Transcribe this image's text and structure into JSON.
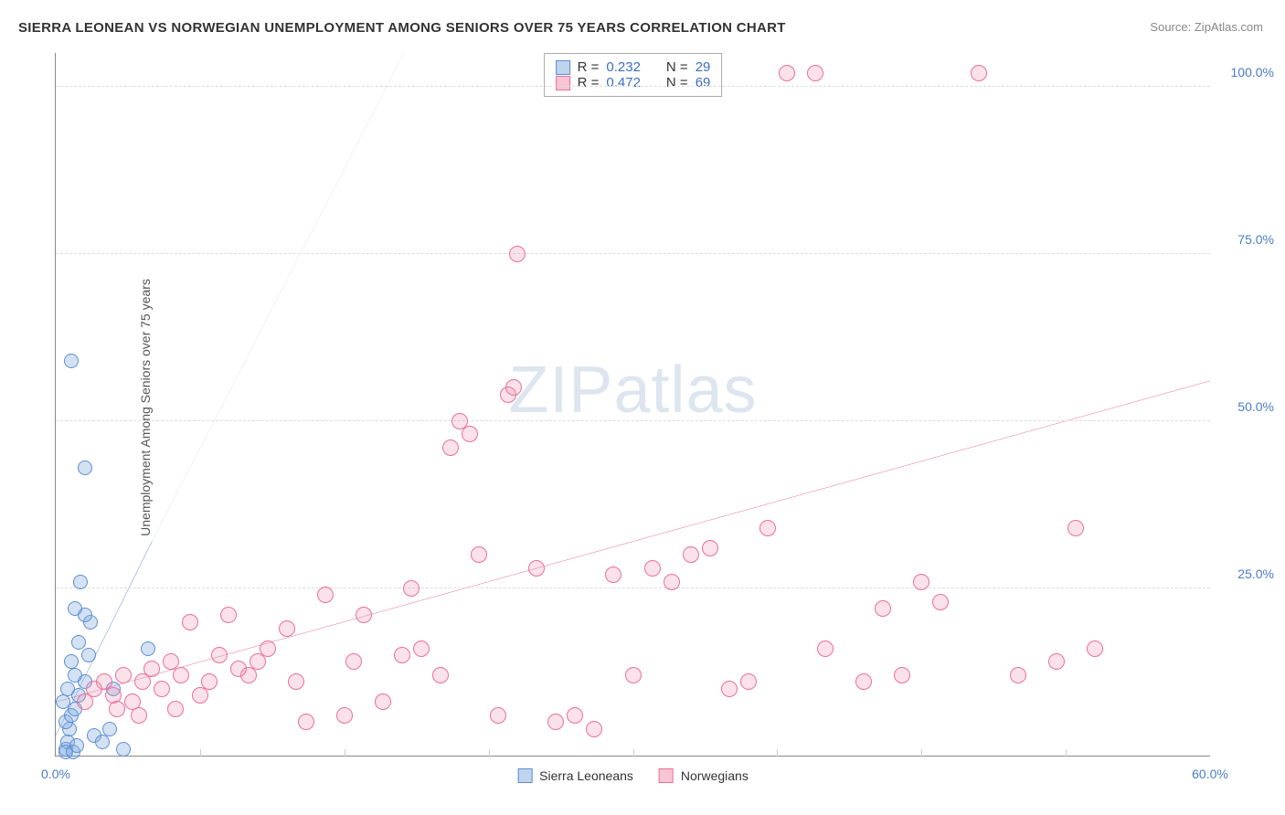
{
  "title": "SIERRA LEONEAN VS NORWEGIAN UNEMPLOYMENT AMONG SENIORS OVER 75 YEARS CORRELATION CHART",
  "source_label": "Source:",
  "source_name": "ZipAtlas.com",
  "ylabel": "Unemployment Among Seniors over 75 years",
  "watermark_a": "ZIP",
  "watermark_b": "atlas",
  "chart": {
    "type": "scatter",
    "xlim": [
      0,
      60
    ],
    "ylim": [
      0,
      105
    ],
    "xticks": [
      0,
      60
    ],
    "yticks": [
      25,
      50,
      75,
      100
    ],
    "xtick_labels": [
      "0.0%",
      "60.0%"
    ],
    "ytick_labels": [
      "25.0%",
      "50.0%",
      "75.0%",
      "100.0%"
    ],
    "grid_vx": [
      7.5,
      15,
      22.5,
      30,
      37.5,
      45,
      52.5
    ],
    "grid_color": "#dddddd",
    "axis_color": "#888888",
    "background_color": "#ffffff",
    "label_color": "#4a7bc8",
    "series": [
      {
        "name": "Sierra Leoneans",
        "key": "blue",
        "marker_color": "#5b8fd0",
        "fill_color": "rgba(130,170,220,0.35)",
        "marker_radius": 8,
        "R": "0.232",
        "N": "29",
        "trend": {
          "x1": 0,
          "y1": 3,
          "x2": 5,
          "y2": 32,
          "dash_x2": 18.1,
          "dash_y2": 108,
          "solid_color": "#3b6fc2",
          "dash_color": "#9ab5dc",
          "width": 2.5
        },
        "points": [
          [
            0.5,
            1
          ],
          [
            0.6,
            2
          ],
          [
            0.7,
            4
          ],
          [
            0.5,
            5
          ],
          [
            0.8,
            6
          ],
          [
            1.0,
            7
          ],
          [
            0.4,
            8
          ],
          [
            1.2,
            9
          ],
          [
            0.6,
            10
          ],
          [
            1.5,
            11
          ],
          [
            1.0,
            12
          ],
          [
            0.8,
            14
          ],
          [
            1.7,
            15
          ],
          [
            1.2,
            17
          ],
          [
            1.8,
            20
          ],
          [
            1.5,
            21
          ],
          [
            1.0,
            22
          ],
          [
            2.0,
            3
          ],
          [
            2.4,
            2
          ],
          [
            2.8,
            4
          ],
          [
            3.5,
            1
          ],
          [
            1.3,
            26
          ],
          [
            4.8,
            16
          ],
          [
            3.0,
            10
          ],
          [
            1.5,
            43
          ],
          [
            0.8,
            59
          ],
          [
            0.5,
            0.5
          ],
          [
            0.9,
            0.5
          ],
          [
            1.1,
            1.5
          ]
        ]
      },
      {
        "name": "Norwegians",
        "key": "pink",
        "marker_color": "#ec6f9b",
        "fill_color": "rgba(240,140,170,0.25)",
        "marker_radius": 9,
        "R": "0.472",
        "N": "69",
        "trend": {
          "x1": 0,
          "y1": 8,
          "x2": 60,
          "y2": 56,
          "solid_color": "#e84d86",
          "width": 2.5
        },
        "points": [
          [
            1.5,
            8
          ],
          [
            2,
            10
          ],
          [
            2.5,
            11
          ],
          [
            3,
            9
          ],
          [
            3.5,
            12
          ],
          [
            4,
            8
          ],
          [
            4.5,
            11
          ],
          [
            5,
            13
          ],
          [
            5.5,
            10
          ],
          [
            6,
            14
          ],
          [
            6.5,
            12
          ],
          [
            7,
            20
          ],
          [
            8,
            11
          ],
          [
            8.5,
            15
          ],
          [
            9,
            21
          ],
          [
            10,
            12
          ],
          [
            10.5,
            14
          ],
          [
            11,
            16
          ],
          [
            12,
            19
          ],
          [
            12.5,
            11
          ],
          [
            13,
            5
          ],
          [
            14,
            24
          ],
          [
            15,
            6
          ],
          [
            15.5,
            14
          ],
          [
            16,
            21
          ],
          [
            17,
            8
          ],
          [
            18,
            15
          ],
          [
            18.5,
            25
          ],
          [
            19,
            16
          ],
          [
            20,
            12
          ],
          [
            20.5,
            46
          ],
          [
            21,
            50
          ],
          [
            21.5,
            48
          ],
          [
            22,
            30
          ],
          [
            23,
            6
          ],
          [
            23.5,
            54
          ],
          [
            23.8,
            55
          ],
          [
            24,
            75
          ],
          [
            25,
            28
          ],
          [
            26,
            5
          ],
          [
            27,
            6
          ],
          [
            28,
            4
          ],
          [
            29,
            27
          ],
          [
            30,
            12
          ],
          [
            31,
            28
          ],
          [
            32,
            26
          ],
          [
            33,
            30
          ],
          [
            34,
            31
          ],
          [
            35,
            10
          ],
          [
            36,
            11
          ],
          [
            37,
            34
          ],
          [
            38,
            102
          ],
          [
            39.5,
            102
          ],
          [
            40,
            16
          ],
          [
            42,
            11
          ],
          [
            43,
            22
          ],
          [
            44,
            12
          ],
          [
            45,
            26
          ],
          [
            46,
            23
          ],
          [
            48,
            102
          ],
          [
            50,
            12
          ],
          [
            52,
            14
          ],
          [
            53,
            34
          ],
          [
            54,
            16
          ],
          [
            3.2,
            7
          ],
          [
            4.3,
            6
          ],
          [
            6.2,
            7
          ],
          [
            7.5,
            9
          ],
          [
            9.5,
            13
          ]
        ]
      }
    ]
  },
  "legend_top_labels": {
    "R": "R =",
    "N": "N ="
  },
  "legend_bottom": [
    {
      "swatch": "blue",
      "label": "Sierra Leoneans"
    },
    {
      "swatch": "pink",
      "label": "Norwegians"
    }
  ]
}
